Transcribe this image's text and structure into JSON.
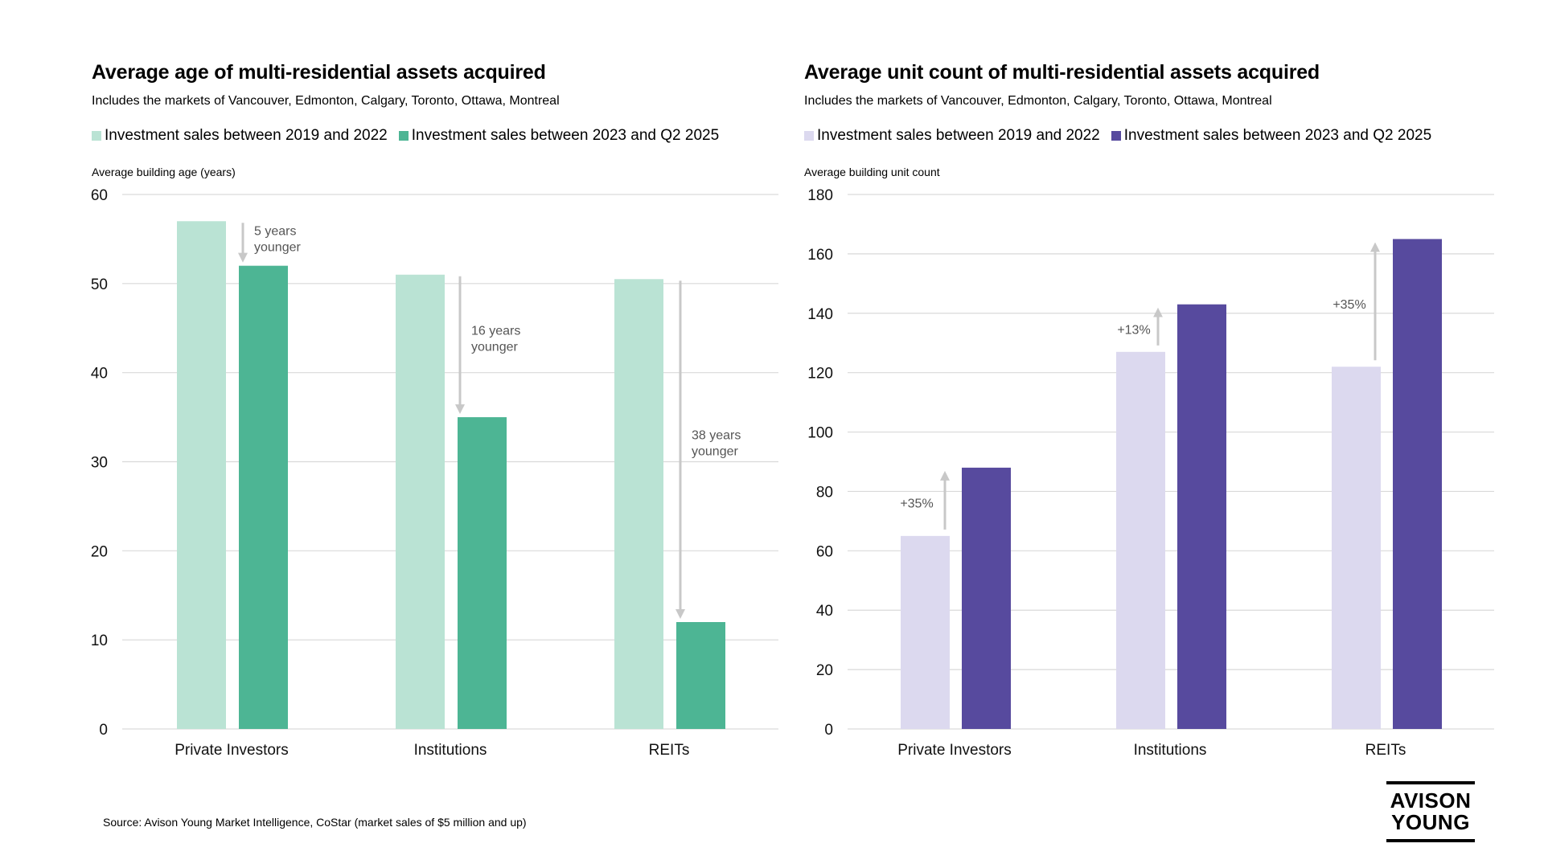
{
  "chart_data": [
    {
      "type": "bar",
      "title": "Average age of multi-residential assets acquired",
      "subtitle": "Includes the markets of Vancouver, Edmonton, Calgary, Toronto, Ottawa, Montreal",
      "ylabel": "Average building age (years)",
      "ylim": [
        0,
        60
      ],
      "yticks": [
        0,
        10,
        20,
        30,
        40,
        50,
        60
      ],
      "grid": true,
      "legend_position": "top-left",
      "categories": [
        "Private Investors",
        "Institutions",
        "REITs"
      ],
      "series": [
        {
          "name": "Investment sales between 2019 and 2022",
          "color": "#BAE3D4",
          "values": [
            57,
            51,
            50.5
          ]
        },
        {
          "name": "Investment sales between 2023 and Q2 2025",
          "color": "#4DB594",
          "values": [
            52,
            35,
            12
          ]
        }
      ],
      "annotations": [
        {
          "category": "Private Investors",
          "lines": [
            "5 years",
            "younger"
          ],
          "direction": "down"
        },
        {
          "category": "Institutions",
          "lines": [
            "16 years",
            "younger"
          ],
          "direction": "down"
        },
        {
          "category": "REITs",
          "lines": [
            "38 years",
            "younger"
          ],
          "direction": "down"
        }
      ]
    },
    {
      "type": "bar",
      "title": "Average unit count of multi-residential assets acquired",
      "subtitle": "Includes the markets of Vancouver, Edmonton, Calgary, Toronto, Ottawa, Montreal",
      "ylabel": "Average building unit count",
      "ylim": [
        0,
        180
      ],
      "yticks": [
        0,
        20,
        40,
        60,
        80,
        100,
        120,
        140,
        160,
        180
      ],
      "grid": true,
      "legend_position": "top-left",
      "categories": [
        "Private Investors",
        "Institutions",
        "REITs"
      ],
      "series": [
        {
          "name": "Investment sales between 2019 and 2022",
          "color": "#DCD9EF",
          "values": [
            65,
            127,
            122
          ]
        },
        {
          "name": "Investment sales between 2023 and Q2 2025",
          "color": "#574A9E",
          "values": [
            88,
            143,
            165
          ]
        }
      ],
      "annotations": [
        {
          "category": "Private Investors",
          "lines": [
            "+35%"
          ],
          "direction": "up"
        },
        {
          "category": "Institutions",
          "lines": [
            "+13%"
          ],
          "direction": "up"
        },
        {
          "category": "REITs",
          "lines": [
            "+35%"
          ],
          "direction": "up"
        }
      ]
    }
  ],
  "footer": {
    "source": "Source: Avison Young Market Intelligence, CoStar (market sales of $5 million and up)",
    "logo_line1": "AVISON",
    "logo_line2": "YOUNG"
  },
  "colors": {
    "gridline": "#D9D9D9",
    "arrow": "#C8C8C8"
  }
}
